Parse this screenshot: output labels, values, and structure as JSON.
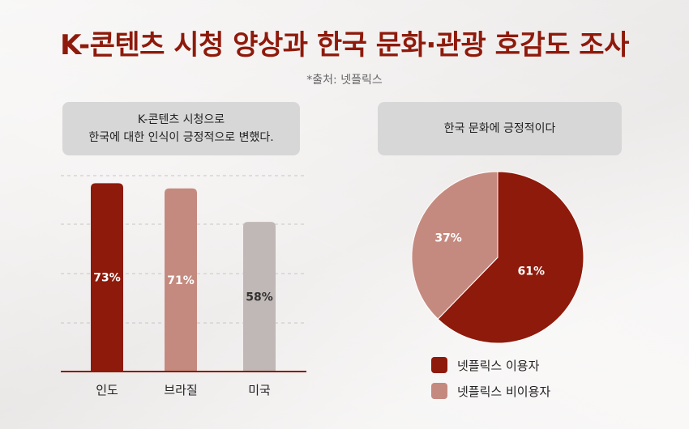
{
  "header": {
    "title": "K-콘텐츠 시청 양상과 한국 문화·관광 호감도 조사",
    "source": "*출처: 넷플릭스"
  },
  "colors": {
    "title": "#8e1a0b",
    "bar_india": "#8e1a0b",
    "bar_brazil": "#c58a7f",
    "bar_usa": "#bfb8b6",
    "pie_users": "#8e1a0b",
    "pie_non_users": "#c58a7f"
  },
  "left_panel": {
    "heading_line1": "K-콘텐츠 시청으로",
    "heading_line2": "한국에 대한 인식이 긍정적으로 변했다."
  },
  "right_panel": {
    "heading": "한국 문화에 긍정적이다"
  },
  "chart_data": [
    {
      "type": "bar",
      "categories": [
        "인도",
        "브라질",
        "미국"
      ],
      "values": [
        73,
        71,
        58
      ],
      "value_labels": [
        "73%",
        "71%",
        "58%"
      ],
      "ylim": [
        0,
        80
      ],
      "grid": true
    },
    {
      "type": "pie",
      "labels": [
        "넷플릭스 이용자",
        "넷플릭스 비이용자"
      ],
      "values": [
        61,
        37
      ],
      "value_labels": [
        "61%",
        "37%"
      ],
      "legend": "bottom"
    }
  ]
}
